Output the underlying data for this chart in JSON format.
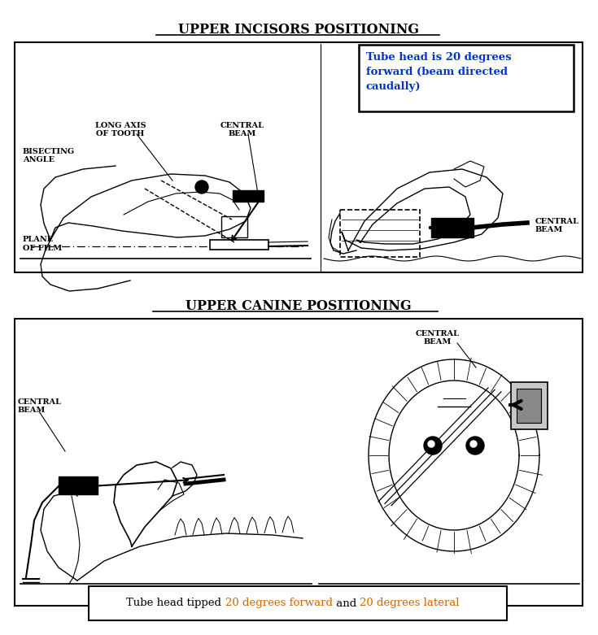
{
  "bg_color": "#ffffff",
  "title1": "UPPER INCISORS POSITIONING",
  "title2": "UPPER CANINE POSITIONING",
  "box1_annotation_line1": "Tube head is 20 degrees",
  "box1_annotation_line2": "forward (beam directed",
  "box1_annotation_line3": "caudally)",
  "box1_annotation_color": "#0033cc",
  "box2_annotation_part1": "Tube head tipped ",
  "box2_annotation_part2": "20 degrees forward",
  "box2_annotation_part3": " and ",
  "box2_annotation_part4": "20 degrees lateral",
  "box2_color_normal": "#000000",
  "box2_color_highlight": "#cc6600",
  "label_long_axis": "LONG AXIS\nOF TOOTH",
  "label_central_beam": "CENTRAL\nBEAM",
  "label_bisecting": "BISECTING\nANGLE",
  "label_plane_film": "PLANE\nOF FILM",
  "title_fontsize": 11.5,
  "label_fontsize": 7,
  "annot_fontsize": 9.5
}
